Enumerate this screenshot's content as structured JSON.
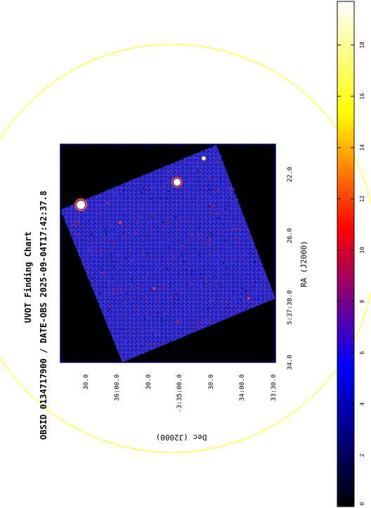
{
  "title": {
    "line1": "UVOT Finding Chart",
    "line2": "OBSID 0134717900 / DATE-OBS 2025-09-04T17:42:37.8"
  },
  "axes": {
    "ra_label": "RA (J2000)",
    "dec_label": "Dec (J2000)",
    "ra_ticks": [
      "34.0",
      "5:37:30.0",
      "26.0",
      "22.0"
    ],
    "dec_ticks": [
      "30.0",
      "36:00.0",
      "30.0",
      "-3:35:00.0",
      "30.0",
      "34:00.0",
      "33:30.0"
    ]
  },
  "colorbar": {
    "ticks": [
      "0",
      "2",
      "4",
      "6",
      "8",
      "10",
      "12",
      "14",
      "16",
      "18"
    ],
    "min": 0,
    "max": 19.7,
    "colors": [
      "#000000",
      "#0000ff",
      "#ff0000",
      "#ffff00",
      "#ffffff"
    ]
  },
  "image": {
    "background": "#000000",
    "frame_color": "#00008b",
    "circle_color": "#ffff33",
    "field_color": "#2b27c8"
  }
}
